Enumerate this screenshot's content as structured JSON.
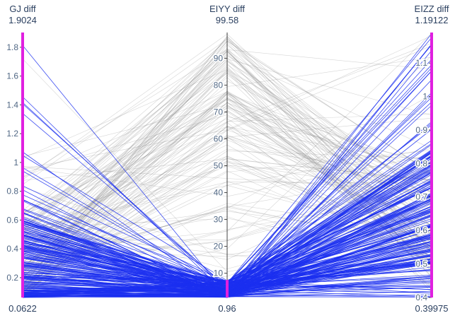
{
  "chart_data": {
    "type": "parallel_coordinates",
    "line_count": 350,
    "colors": {
      "selected": "#1b2ff0",
      "unselected": "#8a8a8a",
      "axis_highlight": "#e020e0",
      "axis": "#444444",
      "text": "#2a3f5f",
      "tick_text": "#506784"
    },
    "dimensions": [
      {
        "name": "GJ diff",
        "range": [
          0.0622,
          1.9024
        ],
        "max_label": "1.9024",
        "min_label": "0.0622",
        "ticks": [
          0.2,
          0.4,
          0.6,
          0.8,
          1.0,
          1.2,
          1.4,
          1.6,
          1.8
        ],
        "tick_labels": [
          "0.2",
          "0.4",
          "0.6",
          "0.8",
          "1",
          "1.2",
          "1.4",
          "1.6",
          "1.8"
        ],
        "constraint": [
          0.0622,
          1.9024
        ]
      },
      {
        "name": "EIYY diff",
        "range": [
          0.96,
          99.58
        ],
        "max_label": "99.58",
        "min_label": "0.96",
        "ticks": [
          10,
          20,
          30,
          40,
          50,
          60,
          70,
          80,
          90
        ],
        "tick_labels": [
          "10",
          "20",
          "30",
          "40",
          "50",
          "60",
          "70",
          "80",
          "90"
        ],
        "constraint": [
          0.96,
          7.5
        ]
      },
      {
        "name": "EIZZ diff",
        "range": [
          0.39975,
          1.19122
        ],
        "max_label": "1.19122",
        "min_label": "0.39975",
        "ticks": [
          0.4,
          0.5,
          0.6,
          0.7,
          0.8,
          0.9,
          1.0,
          1.1
        ],
        "tick_labels": [
          "0.4",
          "0.5",
          "0.6",
          "0.7",
          "0.8",
          "0.9",
          "1",
          "1.1"
        ],
        "constraint": [
          0.39975,
          1.19122
        ]
      }
    ]
  }
}
